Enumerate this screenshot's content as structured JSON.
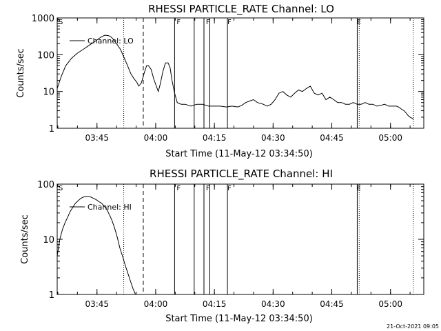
{
  "charts": [
    {
      "title": "RHESSI PARTICLE_RATE Channel: LO",
      "xlabel": "Start Time (11-May-12 03:34:50)",
      "ylabel": "Counts/sec",
      "legend": "Channel: LO",
      "xticks": [
        "03:45",
        "04:00",
        "04:15",
        "04:30",
        "04:45",
        "05:00"
      ],
      "yticks": [
        "1",
        "10",
        "100",
        "1000"
      ],
      "markers": [
        {
          "label": "S",
          "position": "03:34:50"
        },
        {
          "label": "F",
          "position": "04:05:00"
        },
        {
          "label": "F",
          "position": "04:12:30"
        },
        {
          "label": "F",
          "position": "04:18:00"
        },
        {
          "label": "E",
          "position": "04:51:00"
        }
      ]
    },
    {
      "title": "RHESSI PARTICLE_RATE Channel: HI",
      "xlabel": "Start Time (11-May-12 03:34:50)",
      "ylabel": "Counts/sec",
      "legend": "Channel: HI",
      "xticks": [
        "03:45",
        "04:00",
        "04:15",
        "04:30",
        "04:45",
        "05:00"
      ],
      "yticks": [
        "1",
        "10",
        "100"
      ],
      "markers": [
        {
          "label": "S",
          "position": "03:34:50"
        },
        {
          "label": "F",
          "position": "04:05:00"
        },
        {
          "label": "F",
          "position": "04:12:30"
        },
        {
          "label": "F",
          "position": "04:18:00"
        },
        {
          "label": "E",
          "position": "04:51:00"
        }
      ]
    }
  ],
  "timestamp": "21-Oct-2021 09:05",
  "chart_data": [
    {
      "type": "line",
      "title": "RHESSI PARTICLE_RATE Channel: LO",
      "xlabel": "Start Time (11-May-12 03:34:50)",
      "ylabel": "Counts/sec",
      "y_scale": "log",
      "xlim": [
        "03:34:50",
        "05:08:30"
      ],
      "ylim": [
        1,
        1000
      ],
      "grid": false,
      "legend_position": "top-left",
      "vlines": {
        "solid": [
          "04:04:50",
          "04:09:50",
          "04:12:20",
          "04:13:50",
          "04:18:20",
          "04:51:30"
        ],
        "dotted": [
          "03:51:50",
          "04:52:00",
          "05:05:50"
        ],
        "dashed": [
          "03:56:50"
        ]
      },
      "series": [
        {
          "name": "Channel: LO",
          "x": [
            "03:34:50",
            "03:35:50",
            "03:37:00",
            "03:38:30",
            "03:40:00",
            "03:41:30",
            "03:43:00",
            "03:44:30",
            "03:46:00",
            "03:47:00",
            "03:48:00",
            "03:48:40",
            "03:49:20",
            "03:50:00",
            "03:51:00",
            "03:52:00",
            "03:52:50",
            "03:53:40",
            "03:54:30",
            "03:55:10",
            "03:55:40",
            "03:56:20",
            "03:57:00",
            "03:57:40",
            "03:58:10",
            "03:58:50",
            "03:59:30",
            "04:00:10",
            "04:00:40",
            "04:01:10",
            "04:01:50",
            "04:02:30",
            "04:03:10",
            "04:03:40",
            "04:04:10",
            "04:04:50",
            "04:05:30",
            "04:06:30",
            "04:07:30",
            "04:09:00",
            "04:10:30",
            "04:12:00",
            "04:13:30",
            "04:15:00",
            "04:16:30",
            "04:18:00",
            "04:19:30",
            "04:21:00",
            "04:22:00",
            "04:23:00",
            "04:24:00",
            "04:25:00",
            "04:26:00",
            "04:27:30",
            "04:28:30",
            "04:29:30",
            "04:30:30",
            "04:31:30",
            "04:32:30",
            "04:33:30",
            "04:34:30",
            "04:35:30",
            "04:36:30",
            "04:37:30",
            "04:38:30",
            "04:39:30",
            "04:40:30",
            "04:41:30",
            "04:42:30",
            "04:43:30",
            "04:44:30",
            "04:45:30",
            "04:46:30",
            "04:47:30",
            "04:48:30",
            "04:49:30",
            "04:50:30",
            "04:51:30",
            "04:52:30",
            "04:53:30",
            "04:54:30",
            "04:55:30",
            "04:56:30",
            "04:57:30",
            "04:58:30",
            "04:59:30",
            "05:00:30",
            "05:01:30",
            "05:02:00",
            "05:02:30",
            "05:03:00",
            "05:03:30",
            "05:04:00",
            "05:04:30",
            "05:05:00",
            "05:05:50"
          ],
          "y": [
            12,
            25,
            50,
            80,
            110,
            140,
            180,
            230,
            300,
            340,
            330,
            300,
            250,
            200,
            140,
            80,
            50,
            30,
            22,
            18,
            14,
            17,
            30,
            50,
            50,
            40,
            22,
            14,
            10,
            16,
            35,
            60,
            60,
            45,
            20,
            9,
            5,
            4.5,
            4.5,
            4,
            4.5,
            4.5,
            4,
            4,
            4,
            3.8,
            4,
            3.8,
            4.2,
            5,
            5.5,
            6,
            5,
            4.5,
            4,
            4.5,
            6,
            9,
            10,
            8,
            7,
            9,
            11,
            10,
            12,
            14,
            9,
            8,
            9,
            6,
            7,
            6,
            5,
            5,
            4.5,
            4.5,
            5,
            4.5,
            4.5,
            5,
            4.5,
            4.5,
            4,
            4.2,
            4.5,
            4,
            4,
            4,
            3.8,
            3.5,
            3.2,
            3,
            2.6,
            2.2,
            2,
            1.8
          ]
        }
      ]
    },
    {
      "type": "line",
      "title": "RHESSI PARTICLE_RATE Channel: HI",
      "xlabel": "Start Time (11-May-12 03:34:50)",
      "ylabel": "Counts/sec",
      "y_scale": "log",
      "xlim": [
        "03:34:50",
        "05:08:30"
      ],
      "ylim": [
        1,
        100
      ],
      "grid": false,
      "legend_position": "top-left",
      "vlines": {
        "solid": [
          "04:04:50",
          "04:09:50",
          "04:12:20",
          "04:13:50",
          "04:18:20",
          "04:51:30"
        ],
        "dotted": [
          "03:51:50",
          "04:52:00",
          "05:05:50"
        ],
        "dashed": [
          "03:56:50"
        ]
      },
      "series": [
        {
          "name": "Channel: HI",
          "x": [
            "03:34:50",
            "03:35:30",
            "03:36:10",
            "03:36:50",
            "03:37:30",
            "03:38:10",
            "03:38:50",
            "03:39:30",
            "03:40:10",
            "03:40:50",
            "03:41:30",
            "03:42:10",
            "03:42:50",
            "03:43:30",
            "03:44:10",
            "03:44:50",
            "03:45:30",
            "03:46:10",
            "03:46:50",
            "03:47:30",
            "03:48:10",
            "03:48:50",
            "03:49:30",
            "03:50:10",
            "03:50:50",
            "03:51:30",
            "03:52:10",
            "03:52:50",
            "03:53:30",
            "03:54:10",
            "03:54:50"
          ],
          "y": [
            5,
            10,
            15,
            20,
            25,
            32,
            38,
            45,
            50,
            55,
            58,
            60,
            60,
            58,
            55,
            52,
            48,
            45,
            40,
            35,
            28,
            22,
            16,
            11,
            7,
            5,
            3.5,
            2.5,
            1.8,
            1.3,
            1
          ]
        }
      ]
    }
  ]
}
